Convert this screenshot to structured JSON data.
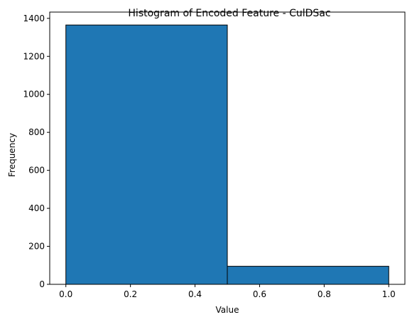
{
  "chart_data": {
    "type": "bar",
    "title": "Histogram of Encoded Feature - CulDSac",
    "xlabel": "Value",
    "ylabel": "Frequency",
    "bins": [
      {
        "x0": 0.0,
        "x1": 0.5,
        "count": 1365
      },
      {
        "x0": 0.5,
        "x1": 1.0,
        "count": 95
      }
    ],
    "xlim": [
      -0.05,
      1.05
    ],
    "ylim": [
      0,
      1433
    ],
    "xticks": [
      0.0,
      0.2,
      0.4,
      0.6,
      0.8,
      1.0
    ],
    "xtick_labels": [
      "0.0",
      "0.2",
      "0.4",
      "0.6",
      "0.8",
      "1.0"
    ],
    "yticks": [
      0,
      200,
      400,
      600,
      800,
      1000,
      1200,
      1400
    ],
    "ytick_labels": [
      "0",
      "200",
      "400",
      "600",
      "800",
      "1000",
      "1200",
      "1400"
    ],
    "bar_color": "#1f77b4",
    "edge_color": "#000000",
    "grid": false,
    "legend": "none"
  }
}
